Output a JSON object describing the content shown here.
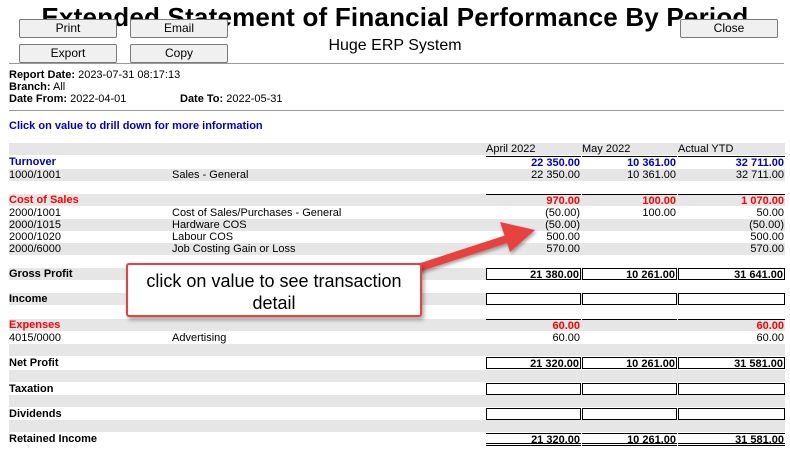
{
  "header": {
    "title": "Extended Statement of Financial Performance By Period",
    "subtitle": "Huge ERP System"
  },
  "buttons": {
    "print": "Print",
    "email": "Email",
    "export": "Export",
    "copy": "Copy",
    "close": "Close"
  },
  "info": {
    "report_date_label": "Report Date:",
    "report_date": "2023-07-31 08:17:13",
    "branch_label": "Branch:",
    "branch": "All",
    "date_from_label": "Date From:",
    "date_from": "2022-04-01",
    "date_to_label": "Date To:",
    "date_to": "2022-05-31"
  },
  "drill_hint": "Click on value to drill down for more information",
  "columns": [
    "April 2022",
    "May 2022",
    "Actual YTD"
  ],
  "rows": {
    "turnover": {
      "label": "Turnover",
      "a": "22 350.00",
      "b": "10 361.00",
      "c": "32 711.00"
    },
    "r1000": {
      "code": "1000/1001",
      "desc": "Sales - General",
      "a": "22 350.00",
      "b": "10 361.00",
      "c": "32 711.00"
    },
    "cos": {
      "label": "Cost of Sales",
      "a": "970.00",
      "b": "100.00",
      "c": "1 070.00"
    },
    "r2000a": {
      "code": "2000/1001",
      "desc": "Cost of Sales/Purchases - General",
      "a": "(50.00)",
      "b": "100.00",
      "c": "50.00"
    },
    "r2000b": {
      "code": "2000/1015",
      "desc": "Hardware COS",
      "a": "(50.00)",
      "b": "",
      "c": "(50.00)"
    },
    "r2000c": {
      "code": "2000/1020",
      "desc": "Labour COS",
      "a": "500.00",
      "b": "",
      "c": "500.00"
    },
    "r2000d": {
      "code": "2000/6000",
      "desc": "Job Costing Gain or Loss",
      "a": "570.00",
      "b": "",
      "c": "570.00"
    },
    "gross": {
      "label": "Gross Profit",
      "a": "21 380.00",
      "b": "10 261.00",
      "c": "31 641.00"
    },
    "income": {
      "label": "Income"
    },
    "expenses": {
      "label": "Expenses",
      "a": "60.00",
      "b": "",
      "c": "60.00"
    },
    "r4015": {
      "code": "4015/0000",
      "desc": "Advertising",
      "a": "60.00",
      "b": "",
      "c": "60.00"
    },
    "net": {
      "label": "Net Profit",
      "a": "21 320.00",
      "b": "10 261.00",
      "c": "31 581.00"
    },
    "taxation": {
      "label": "Taxation"
    },
    "dividends": {
      "label": "Dividends"
    },
    "retained": {
      "label": "Retained Income",
      "a": "21 320.00",
      "b": "10 261.00",
      "c": "31 581.00"
    }
  },
  "callout": {
    "text": "click on value to see transaction detail"
  },
  "colors": {
    "accent_blue": "#0000cc",
    "accent_red": "#ff0000",
    "callout_border": "#e8423f",
    "band": "#e6e6e6"
  }
}
